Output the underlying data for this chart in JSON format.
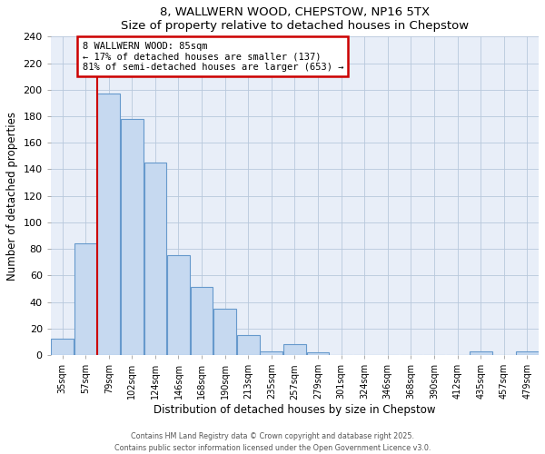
{
  "title1": "8, WALLWERN WOOD, CHEPSTOW, NP16 5TX",
  "title2": "Size of property relative to detached houses in Chepstow",
  "xlabel": "Distribution of detached houses by size in Chepstow",
  "ylabel": "Number of detached properties",
  "bin_labels": [
    "35sqm",
    "57sqm",
    "79sqm",
    "102sqm",
    "124sqm",
    "146sqm",
    "168sqm",
    "190sqm",
    "213sqm",
    "235sqm",
    "257sqm",
    "279sqm",
    "301sqm",
    "324sqm",
    "346sqm",
    "368sqm",
    "390sqm",
    "412sqm",
    "435sqm",
    "457sqm",
    "479sqm"
  ],
  "bin_values": [
    12,
    84,
    197,
    178,
    145,
    75,
    51,
    35,
    15,
    3,
    8,
    2,
    0,
    0,
    0,
    0,
    0,
    0,
    3,
    0,
    3
  ],
  "bar_color": "#c6d9f0",
  "bar_edge_color": "#6699cc",
  "property_bin_index": 2,
  "annotation_title": "8 WALLWERN WOOD: 85sqm",
  "annotation_line1": "← 17% of detached houses are smaller (137)",
  "annotation_line2": "81% of semi-detached houses are larger (653) →",
  "vline_color": "#cc0000",
  "annotation_box_color": "#ffffff",
  "annotation_box_edge": "#cc0000",
  "ylim": [
    0,
    240
  ],
  "yticks": [
    0,
    20,
    40,
    60,
    80,
    100,
    120,
    140,
    160,
    180,
    200,
    220,
    240
  ],
  "footer1": "Contains HM Land Registry data © Crown copyright and database right 2025.",
  "footer2": "Contains public sector information licensed under the Open Government Licence v3.0.",
  "bg_color": "#ffffff",
  "plot_bg_color": "#e8eef8"
}
